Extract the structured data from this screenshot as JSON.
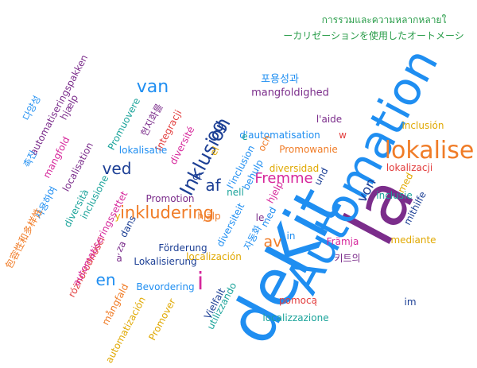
{
  "palette": {
    "blue": "#1f8ef1",
    "navy": "#1c3f95",
    "orange": "#f07c27",
    "purple": "#7b2d8b",
    "magenta": "#d6279b",
    "green": "#2a9d4a",
    "teal": "#1aa39a",
    "gold": "#e0a800",
    "red": "#e23c3c",
    "dark": "#333333"
  },
  "words": [
    {
      "text": "deKit",
      "color": "blue"
    },
    {
      "text": "la",
      "color": "purple"
    },
    {
      "text": "Automation",
      "color": "blue"
    },
    {
      "text": "lokalise",
      "color": "orange"
    },
    {
      "text": "Inklusion",
      "color": "navy"
    },
    {
      "text": "inkludering",
      "color": "orange"
    },
    {
      "text": "Fremme",
      "color": "magenta"
    },
    {
      "text": "van",
      "color": "blue"
    },
    {
      "text": "ved",
      "color": "navy"
    },
    {
      "text": "af",
      "color": "navy"
    },
    {
      "text": "og",
      "color": "navy"
    },
    {
      "text": "en",
      "color": "blue"
    },
    {
      "text": "i",
      "color": "magenta"
    },
    {
      "text": "av",
      "color": "orange"
    },
    {
      "text": "von",
      "color": "navy"
    },
    {
      "text": "mangfoldighed",
      "color": "purple"
    },
    {
      "text": "포용성과",
      "color": "blue"
    },
    {
      "text": "l'aide",
      "color": "purple"
    },
    {
      "text": "d'automatisation",
      "color": "blue"
    },
    {
      "text": "Promowanie",
      "color": "orange"
    },
    {
      "text": "diversidad",
      "color": "gold"
    },
    {
      "text": "lokalizacji",
      "color": "red"
    },
    {
      "text": "inclusión",
      "color": "gold"
    },
    {
      "text": "inclusie",
      "color": "teal"
    },
    {
      "text": "med",
      "color": "gold"
    },
    {
      "text": "mithilfe",
      "color": "navy"
    },
    {
      "text": "mediante",
      "color": "gold"
    },
    {
      "text": "Främja",
      "color": "magenta"
    },
    {
      "text": "키트의",
      "color": "purple"
    },
    {
      "text": "pomocą",
      "color": "red"
    },
    {
      "text": "localizzazione",
      "color": "teal"
    },
    {
      "text": "im",
      "color": "navy"
    },
    {
      "text": "Vielfalt",
      "color": "navy"
    },
    {
      "text": "utilizzando",
      "color": "teal"
    },
    {
      "text": "Promover",
      "color": "gold"
    },
    {
      "text": "automatización",
      "color": "gold"
    },
    {
      "text": "mångfald",
      "color": "orange"
    },
    {
      "text": "Bevordering",
      "color": "blue"
    },
    {
      "text": "Lokalisierung",
      "color": "navy"
    },
    {
      "text": "Förderung",
      "color": "navy"
    },
    {
      "text": "localización",
      "color": "gold"
    },
    {
      "text": "hjälp",
      "color": "orange"
    },
    {
      "text": "Promotion",
      "color": "purple"
    },
    {
      "text": "diversiteit",
      "color": "blue"
    },
    {
      "text": "자동화",
      "color": "blue"
    },
    {
      "text": "med",
      "color": "blue"
    },
    {
      "text": "in",
      "color": "blue"
    },
    {
      "text": "le",
      "color": "purple"
    },
    {
      "text": "hjelp",
      "color": "magenta"
    },
    {
      "text": "nell",
      "color": "teal"
    },
    {
      "text": "behulp",
      "color": "blue"
    },
    {
      "text": "l'inclusion",
      "color": "blue"
    },
    {
      "text": "och",
      "color": "orange"
    },
    {
      "text": "e",
      "color": "teal"
    },
    {
      "text": "w",
      "color": "red"
    },
    {
      "text": "und",
      "color": "navy"
    },
    {
      "text": "y",
      "color": "gold"
    },
    {
      "text": "et",
      "color": "navy"
    },
    {
      "text": "el",
      "color": "gold"
    },
    {
      "text": "dans",
      "color": "navy"
    },
    {
      "text": "à",
      "color": "purple"
    },
    {
      "text": "za",
      "color": "purple"
    },
    {
      "text": "różnorodności",
      "color": "red"
    },
    {
      "text": "automatiseringssettet",
      "color": "magenta"
    },
    {
      "text": "inclusione",
      "color": "teal"
    },
    {
      "text": "diversità",
      "color": "teal"
    },
    {
      "text": "localisation",
      "color": "purple"
    },
    {
      "text": "lokalisatie",
      "color": "blue"
    },
    {
      "text": "diversité",
      "color": "magenta"
    },
    {
      "text": "integracji",
      "color": "red"
    },
    {
      "text": "현지화를",
      "color": "purple"
    },
    {
      "text": "Promuovere",
      "color": "teal"
    },
    {
      "text": "automatiseringspakken",
      "color": "purple"
    },
    {
      "text": "hjælp",
      "color": "purple"
    },
    {
      "text": "다양성",
      "color": "blue"
    },
    {
      "text": "mangfold",
      "color": "magenta"
    },
    {
      "text": "촉진",
      "color": "blue"
    },
    {
      "text": "사용하여",
      "color": "blue"
    },
    {
      "text": "包容性和多样性",
      "color": "orange"
    },
    {
      "text": "การรวมและความหลากหลายใ",
      "color": "green"
    },
    {
      "text": "ーカリゼーションを使用したオートメーシ",
      "color": "green"
    }
  ]
}
